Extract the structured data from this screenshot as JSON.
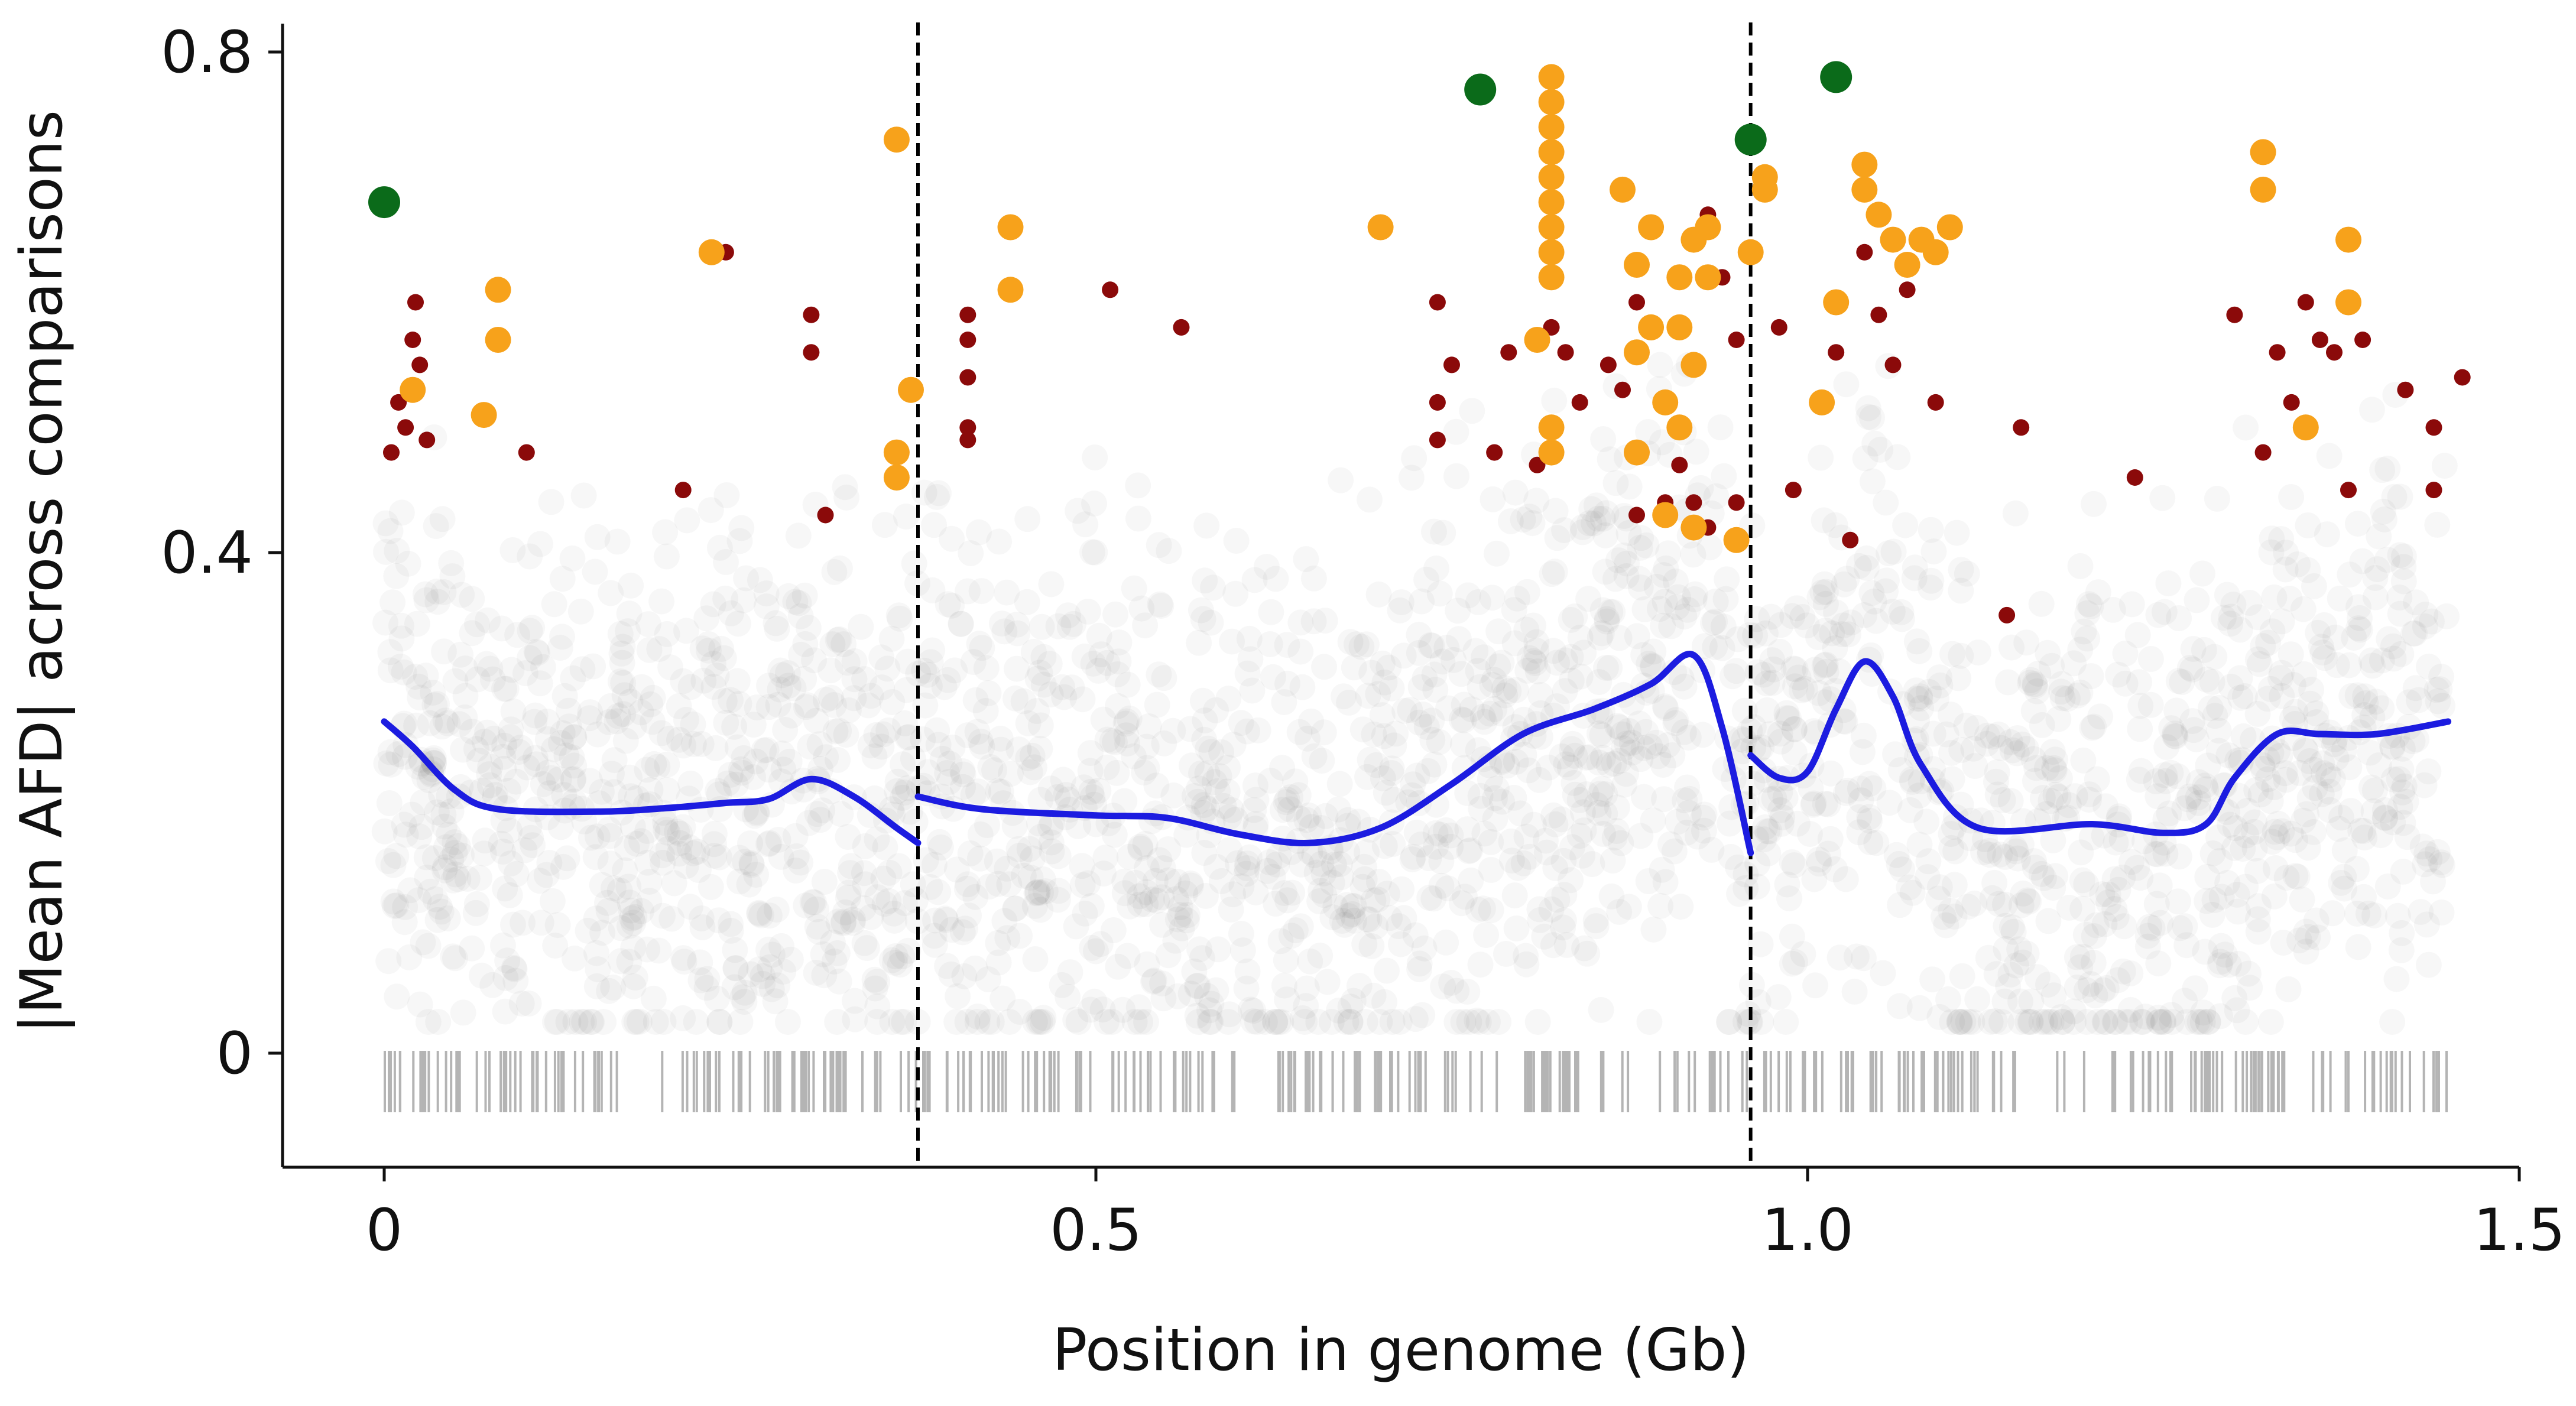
{
  "chart_data": {
    "type": "scatter",
    "title": "",
    "xlabel": "Position in genome (Gb)",
    "ylabel": "|Mean AFD| across comparisons",
    "xlim": [
      -0.07,
      1.5
    ],
    "ylim": [
      -0.09,
      0.82
    ],
    "xticks": [
      0,
      0.5,
      1.0,
      1.5
    ],
    "xtick_labels": [
      "0",
      "0.5",
      "1.0",
      "1.5"
    ],
    "yticks": [
      0,
      0.4,
      0.8
    ],
    "ytick_labels": [
      "0",
      "0.4",
      "0.8"
    ],
    "grid": false,
    "legend": "none",
    "colors": {
      "background_points": "#000000",
      "dark_red": "#8b0a0a",
      "orange": "#f7a21b",
      "green": "#0b6b1a",
      "trend_line": "#1c1ce0",
      "boundary_lines": "#000000",
      "rug": "#b4b4b4"
    },
    "chromosome_boundaries_gb": [
      0.375,
      0.96
    ],
    "series": [
      {
        "name": "trend",
        "style": "smooth-line",
        "segments": [
          [
            [
              0.0,
              0.265
            ],
            [
              0.02,
              0.245
            ],
            [
              0.05,
              0.21
            ],
            [
              0.08,
              0.195
            ],
            [
              0.15,
              0.193
            ],
            [
              0.2,
              0.196
            ],
            [
              0.24,
              0.2
            ],
            [
              0.27,
              0.203
            ],
            [
              0.3,
              0.219
            ],
            [
              0.33,
              0.205
            ],
            [
              0.36,
              0.18
            ],
            [
              0.375,
              0.168
            ]
          ],
          [
            [
              0.375,
              0.205
            ],
            [
              0.42,
              0.195
            ],
            [
              0.5,
              0.19
            ],
            [
              0.55,
              0.188
            ],
            [
              0.6,
              0.175
            ],
            [
              0.65,
              0.168
            ],
            [
              0.7,
              0.18
            ],
            [
              0.75,
              0.215
            ],
            [
              0.8,
              0.255
            ],
            [
              0.85,
              0.275
            ],
            [
              0.89,
              0.295
            ],
            [
              0.92,
              0.318
            ],
            [
              0.94,
              0.26
            ],
            [
              0.96,
              0.16
            ]
          ],
          [
            [
              0.96,
              0.238
            ],
            [
              0.98,
              0.22
            ],
            [
              1.0,
              0.225
            ],
            [
              1.02,
              0.275
            ],
            [
              1.04,
              0.313
            ],
            [
              1.06,
              0.285
            ],
            [
              1.08,
              0.23
            ],
            [
              1.12,
              0.18
            ],
            [
              1.2,
              0.183
            ],
            [
              1.25,
              0.176
            ],
            [
              1.28,
              0.183
            ],
            [
              1.3,
              0.22
            ],
            [
              1.33,
              0.255
            ],
            [
              1.36,
              0.255
            ],
            [
              1.4,
              0.255
            ],
            [
              1.45,
              0.265
            ]
          ]
        ]
      },
      {
        "name": "dark-red-outliers",
        "style": "points",
        "points": [
          [
            0.01,
            0.52
          ],
          [
            0.015,
            0.5
          ],
          [
            0.02,
            0.57
          ],
          [
            0.022,
            0.6
          ],
          [
            0.025,
            0.55
          ],
          [
            0.03,
            0.49
          ],
          [
            0.005,
            0.48
          ],
          [
            0.1,
            0.48
          ],
          [
            0.21,
            0.45
          ],
          [
            0.24,
            0.64
          ],
          [
            0.3,
            0.59
          ],
          [
            0.3,
            0.56
          ],
          [
            0.31,
            0.43
          ],
          [
            0.41,
            0.59
          ],
          [
            0.41,
            0.57
          ],
          [
            0.41,
            0.54
          ],
          [
            0.41,
            0.5
          ],
          [
            0.41,
            0.49
          ],
          [
            0.51,
            0.61
          ],
          [
            0.56,
            0.58
          ],
          [
            0.74,
            0.6
          ],
          [
            0.75,
            0.55
          ],
          [
            0.74,
            0.52
          ],
          [
            0.74,
            0.49
          ],
          [
            0.78,
            0.48
          ],
          [
            0.79,
            0.56
          ],
          [
            0.81,
            0.47
          ],
          [
            0.82,
            0.58
          ],
          [
            0.83,
            0.56
          ],
          [
            0.84,
            0.52
          ],
          [
            0.86,
            0.55
          ],
          [
            0.87,
            0.53
          ],
          [
            0.88,
            0.6
          ],
          [
            0.89,
            0.58
          ],
          [
            0.9,
            0.52
          ],
          [
            0.91,
            0.47
          ],
          [
            0.92,
            0.44
          ],
          [
            0.93,
            0.67
          ],
          [
            0.94,
            0.62
          ],
          [
            0.95,
            0.57
          ],
          [
            0.88,
            0.43
          ],
          [
            0.9,
            0.44
          ],
          [
            0.93,
            0.42
          ],
          [
            0.95,
            0.44
          ],
          [
            0.98,
            0.58
          ],
          [
            0.99,
            0.45
          ],
          [
            1.02,
            0.56
          ],
          [
            1.03,
            0.41
          ],
          [
            1.04,
            0.64
          ],
          [
            1.05,
            0.59
          ],
          [
            1.06,
            0.55
          ],
          [
            1.07,
            0.61
          ],
          [
            1.09,
            0.52
          ],
          [
            1.15,
            0.5
          ],
          [
            1.14,
            0.35
          ],
          [
            1.23,
            0.46
          ],
          [
            1.3,
            0.59
          ],
          [
            1.32,
            0.48
          ],
          [
            1.33,
            0.56
          ],
          [
            1.34,
            0.52
          ],
          [
            1.35,
            0.6
          ],
          [
            1.36,
            0.57
          ],
          [
            1.37,
            0.56
          ],
          [
            1.38,
            0.45
          ],
          [
            1.39,
            0.57
          ],
          [
            1.42,
            0.53
          ],
          [
            1.44,
            0.5
          ],
          [
            1.44,
            0.45
          ],
          [
            1.46,
            0.54
          ]
        ]
      },
      {
        "name": "orange-outliers",
        "style": "points",
        "points": [
          [
            0.02,
            0.53
          ],
          [
            0.07,
            0.51
          ],
          [
            0.08,
            0.61
          ],
          [
            0.08,
            0.57
          ],
          [
            0.23,
            0.64
          ],
          [
            0.36,
            0.73
          ],
          [
            0.36,
            0.48
          ],
          [
            0.36,
            0.46
          ],
          [
            0.37,
            0.53
          ],
          [
            0.44,
            0.66
          ],
          [
            0.44,
            0.61
          ],
          [
            0.7,
            0.66
          ],
          [
            0.81,
            0.57
          ],
          [
            0.82,
            0.78
          ],
          [
            0.82,
            0.76
          ],
          [
            0.82,
            0.74
          ],
          [
            0.82,
            0.72
          ],
          [
            0.82,
            0.7
          ],
          [
            0.82,
            0.68
          ],
          [
            0.82,
            0.66
          ],
          [
            0.82,
            0.64
          ],
          [
            0.82,
            0.62
          ],
          [
            0.82,
            0.5
          ],
          [
            0.82,
            0.48
          ],
          [
            0.87,
            0.69
          ],
          [
            0.88,
            0.63
          ],
          [
            0.88,
            0.56
          ],
          [
            0.89,
            0.66
          ],
          [
            0.89,
            0.58
          ],
          [
            0.88,
            0.48
          ],
          [
            0.9,
            0.52
          ],
          [
            0.9,
            0.43
          ],
          [
            0.91,
            0.5
          ],
          [
            0.91,
            0.58
          ],
          [
            0.91,
            0.62
          ],
          [
            0.92,
            0.65
          ],
          [
            0.92,
            0.55
          ],
          [
            0.93,
            0.66
          ],
          [
            0.93,
            0.62
          ],
          [
            0.92,
            0.42
          ],
          [
            0.95,
            0.41
          ],
          [
            0.96,
            0.64
          ],
          [
            0.97,
            0.7
          ],
          [
            0.97,
            0.69
          ],
          [
            1.01,
            0.52
          ],
          [
            1.02,
            0.6
          ],
          [
            1.04,
            0.71
          ],
          [
            1.04,
            0.69
          ],
          [
            1.05,
            0.67
          ],
          [
            1.06,
            0.65
          ],
          [
            1.07,
            0.63
          ],
          [
            1.08,
            0.65
          ],
          [
            1.09,
            0.64
          ],
          [
            1.1,
            0.66
          ],
          [
            1.32,
            0.72
          ],
          [
            1.32,
            0.69
          ],
          [
            1.35,
            0.5
          ],
          [
            1.38,
            0.6
          ],
          [
            1.38,
            0.65
          ]
        ]
      },
      {
        "name": "green-outliers",
        "style": "points",
        "points": [
          [
            0.0,
            0.68
          ],
          [
            0.77,
            0.77
          ],
          [
            0.96,
            0.73
          ],
          [
            1.02,
            0.78
          ]
        ]
      }
    ]
  }
}
